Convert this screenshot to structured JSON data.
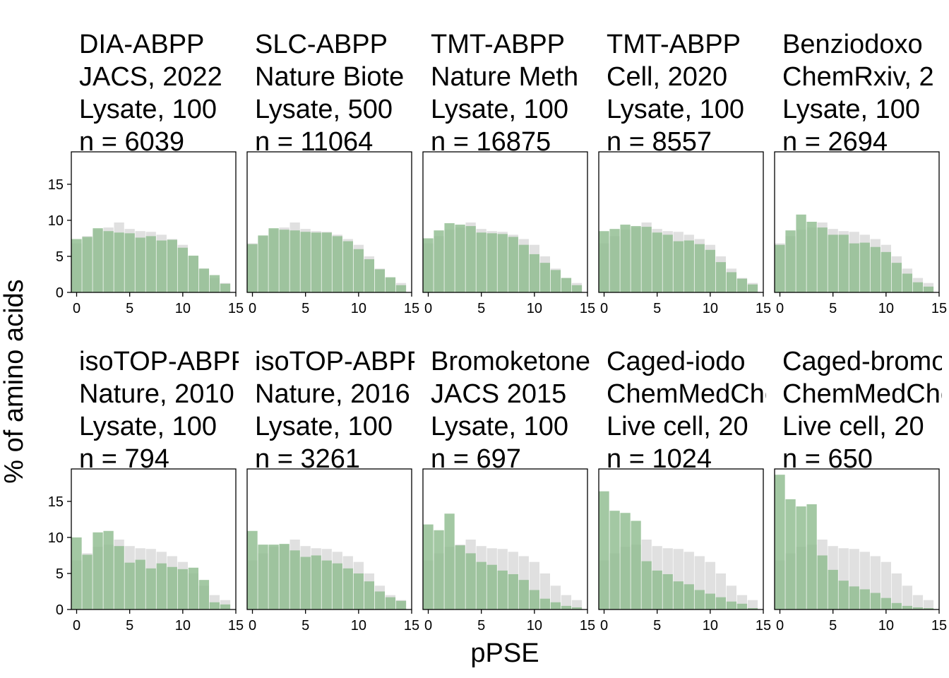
{
  "figure": {
    "xlabel": "pPSE",
    "ylabel": "% of amino acids",
    "colors": {
      "background_bars": "#e0e0e0",
      "foreground_bars": "#8fbc8f",
      "frame": "#000000"
    }
  },
  "chart_data": {
    "type": "bar",
    "layout": "faceted grid, 2 rows x 5 columns",
    "x": [
      0,
      1,
      2,
      3,
      4,
      5,
      6,
      7,
      8,
      9,
      10,
      11,
      12,
      13,
      14
    ],
    "xlim": [
      -0.5,
      15
    ],
    "ylim": [
      0,
      19.5
    ],
    "xticks": [
      "0",
      "5",
      "10",
      "15"
    ],
    "yticks": [
      "0",
      "5",
      "10",
      "15"
    ],
    "grid": false,
    "background": [
      6.8,
      7.8,
      8.7,
      9.0,
      9.7,
      8.8,
      8.5,
      8.4,
      8.0,
      7.4,
      6.6,
      5.0,
      3.3,
      2.0,
      1.3
    ],
    "panels": [
      {
        "title": [
          "DIA-ABPP",
          "JACS, 2022",
          "Lysate, 100",
          "n = 6039"
        ],
        "values": [
          7.4,
          7.7,
          8.9,
          8.5,
          8.3,
          8.2,
          7.6,
          7.8,
          7.2,
          7.3,
          6.2,
          5.1,
          3.3,
          2.4,
          1.2
        ]
      },
      {
        "title": [
          "SLC-ABPP",
          "Nature Biote",
          "Lysate, 500",
          "n = 11064"
        ],
        "values": [
          6.7,
          7.9,
          8.9,
          8.7,
          8.6,
          8.4,
          8.3,
          8.3,
          7.8,
          7.1,
          6.0,
          4.6,
          3.2,
          2.1,
          1.0
        ]
      },
      {
        "title": [
          "TMT-ABPP",
          "Nature Meth",
          "Lysate, 100",
          "n = 16875"
        ],
        "values": [
          7.5,
          8.6,
          9.6,
          9.4,
          9.2,
          8.3,
          8.2,
          8.1,
          7.7,
          6.6,
          5.3,
          4.1,
          3.1,
          2.0,
          1.0
        ]
      },
      {
        "title": [
          "TMT-ABPP",
          "Cell, 2020",
          "Lysate, 100",
          "n = 8557"
        ],
        "values": [
          8.5,
          8.8,
          9.4,
          9.2,
          9.1,
          8.3,
          8.0,
          7.1,
          7.2,
          6.7,
          5.9,
          4.2,
          2.8,
          1.9,
          1.1
        ]
      },
      {
        "title": [
          "Benziodoxo",
          "ChemRxiv, 2",
          "Lysate, 100",
          "n = 2694"
        ],
        "values": [
          6.6,
          8.6,
          10.8,
          9.8,
          9.0,
          8.0,
          8.0,
          6.8,
          6.9,
          6.3,
          5.6,
          4.1,
          2.6,
          1.4,
          0.8
        ]
      },
      {
        "title": [
          "isoTOP-ABPP",
          "Nature, 2010",
          "Lysate, 100",
          "n = 794"
        ],
        "values": [
          10.0,
          7.6,
          10.7,
          10.9,
          8.8,
          6.5,
          6.9,
          5.7,
          6.4,
          5.9,
          5.6,
          5.8,
          4.1,
          1.0,
          0.7
        ]
      },
      {
        "title": [
          "isoTOP-ABPP",
          "Nature, 2016",
          "Lysate, 100",
          "n = 3261"
        ],
        "values": [
          10.9,
          9.0,
          9.0,
          9.1,
          8.2,
          7.3,
          7.5,
          6.8,
          6.4,
          5.7,
          5.0,
          3.9,
          2.5,
          1.7,
          1.2
        ]
      },
      {
        "title": [
          "Bromoketone",
          "JACS 2015",
          "Lysate, 100",
          "n = 697"
        ],
        "values": [
          11.8,
          11.0,
          13.3,
          8.9,
          7.8,
          6.6,
          6.2,
          5.4,
          4.9,
          4.1,
          2.7,
          1.5,
          1.0,
          0.5,
          0.3
        ]
      },
      {
        "title": [
          "Caged-iodo",
          "ChemMedChem",
          "Live cell, 20",
          "n = 1024"
        ],
        "values": [
          16.4,
          13.7,
          13.4,
          12.3,
          6.7,
          5.4,
          4.9,
          3.9,
          3.5,
          2.7,
          2.2,
          1.7,
          1.1,
          0.8,
          0.2
        ]
      },
      {
        "title": [
          "Caged-bromo",
          "ChemMedChem",
          "Live cell, 20",
          "n = 650"
        ],
        "values": [
          18.7,
          15.3,
          14.3,
          14.6,
          7.5,
          5.5,
          4.0,
          3.2,
          2.8,
          2.3,
          1.6,
          0.9,
          0.5,
          0.3,
          0.2
        ]
      }
    ]
  }
}
